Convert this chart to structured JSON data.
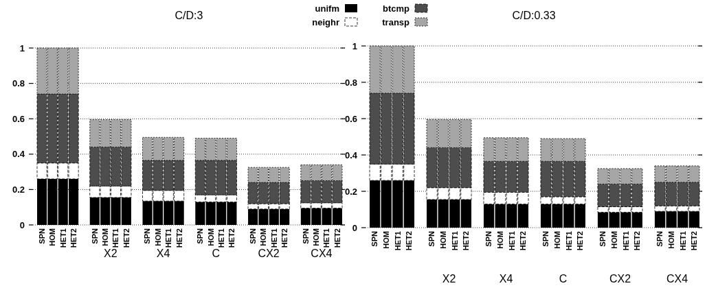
{
  "chart_data": [
    {
      "type": "bar",
      "title": "C/D:3",
      "stacked": true,
      "legend": "top right",
      "grid": "y",
      "ylim": [
        0,
        1
      ],
      "yticks": [
        0,
        0.2,
        0.4,
        0.6,
        0.8,
        1
      ],
      "categories": [
        "SPN",
        "HOM",
        "HET1",
        "HET2",
        null,
        "SPN",
        "HOM",
        "HET1",
        "HET2",
        null,
        "SPN",
        "HOM",
        "HET1",
        "HET2",
        null,
        "SPN",
        "HOM",
        "HET1",
        "HET2",
        null,
        "SPN",
        "HOM",
        "HET1",
        "HET2",
        null,
        "SPN",
        "HOM",
        "HET1",
        "HET2"
      ],
      "annotations": [
        "X2",
        "X4",
        "C",
        "CX2",
        "CX4"
      ],
      "series": [
        {
          "name": "unifm",
          "color": "#000000",
          "values": [
            0.26,
            0.26,
            0.26,
            0.26,
            null,
            0.155,
            0.155,
            0.155,
            0.155,
            null,
            0.135,
            0.135,
            0.135,
            0.135,
            null,
            0.13,
            0.13,
            0.13,
            0.13,
            null,
            0.09,
            0.09,
            0.09,
            0.09,
            null,
            0.095,
            0.095,
            0.095,
            0.095
          ]
        },
        {
          "name": "neighr",
          "color": "#ffffff",
          "values": [
            0.09,
            0.09,
            0.09,
            0.09,
            null,
            0.065,
            0.065,
            0.065,
            0.065,
            null,
            0.06,
            0.06,
            0.06,
            0.06,
            null,
            0.04,
            0.04,
            0.04,
            0.04,
            null,
            0.03,
            0.03,
            0.03,
            0.03,
            null,
            0.03,
            0.03,
            0.03,
            0.03
          ]
        },
        {
          "name": "btcmp",
          "color": "#4d4d4d",
          "values": [
            0.39,
            0.39,
            0.39,
            0.39,
            null,
            0.22,
            0.22,
            0.22,
            0.22,
            null,
            0.17,
            0.17,
            0.17,
            0.17,
            null,
            0.195,
            0.195,
            0.195,
            0.195,
            null,
            0.12,
            0.12,
            0.12,
            0.12,
            null,
            0.125,
            0.125,
            0.125,
            0.125
          ]
        },
        {
          "name": "transp",
          "color": "#a6a6a6",
          "values": [
            0.26,
            0.26,
            0.26,
            0.26,
            null,
            0.155,
            0.155,
            0.155,
            0.155,
            null,
            0.13,
            0.13,
            0.13,
            0.13,
            null,
            0.125,
            0.125,
            0.125,
            0.125,
            null,
            0.085,
            0.085,
            0.085,
            0.085,
            null,
            0.09,
            0.09,
            0.09,
            0.09
          ]
        }
      ]
    },
    {
      "type": "bar",
      "title": "C/D:0.33",
      "stacked": true,
      "grid": "y",
      "ylim": [
        0,
        1
      ],
      "yticks": [
        0,
        0.2,
        0.4,
        0.6,
        0.8,
        1
      ],
      "categories": [
        "SPN",
        "HOM",
        "HET1",
        "HET2",
        null,
        "SPN",
        "HOM",
        "HET1",
        "HET2",
        null,
        "SPN",
        "HOM",
        "HET1",
        "HET2",
        null,
        "SPN",
        "HOM",
        "HET1",
        "HET2",
        null,
        "SPN",
        "HOM",
        "HET1",
        "HET2",
        null,
        "SPN",
        "HOM",
        "HET1",
        "HET2"
      ],
      "annotations": [
        "X2",
        "X4",
        "C",
        "CX2",
        "CX4"
      ],
      "series": [
        {
          "color": "#000000",
          "values": [
            0.26,
            0.26,
            0.26,
            0.26,
            null,
            0.155,
            0.155,
            0.155,
            0.155,
            null,
            0.13,
            0.13,
            0.13,
            0.13,
            null,
            0.13,
            0.13,
            0.13,
            0.13,
            null,
            0.085,
            0.085,
            0.085,
            0.085,
            null,
            0.09,
            0.09,
            0.09,
            0.09
          ]
        },
        {
          "color": "#ffffff",
          "values": [
            0.09,
            0.09,
            0.09,
            0.09,
            null,
            0.065,
            0.065,
            0.065,
            0.065,
            null,
            0.065,
            0.065,
            0.065,
            0.065,
            null,
            0.04,
            0.04,
            0.04,
            0.04,
            null,
            0.03,
            0.03,
            0.03,
            0.03,
            null,
            0.03,
            0.03,
            0.03,
            0.03
          ]
        },
        {
          "color": "#4d4d4d",
          "values": [
            0.39,
            0.39,
            0.39,
            0.39,
            null,
            0.22,
            0.22,
            0.22,
            0.22,
            null,
            0.17,
            0.17,
            0.17,
            0.17,
            null,
            0.195,
            0.195,
            0.195,
            0.195,
            null,
            0.125,
            0.125,
            0.125,
            0.125,
            null,
            0.13,
            0.13,
            0.13,
            0.13
          ]
        },
        {
          "color": "#a6a6a6",
          "values": [
            0.26,
            0.26,
            0.26,
            0.26,
            null,
            0.155,
            0.155,
            0.155,
            0.155,
            null,
            0.13,
            0.13,
            0.13,
            0.13,
            null,
            0.125,
            0.125,
            0.125,
            0.125,
            null,
            0.085,
            0.085,
            0.085,
            0.085,
            null,
            0.09,
            0.09,
            0.09,
            0.09
          ]
        }
      ]
    }
  ]
}
